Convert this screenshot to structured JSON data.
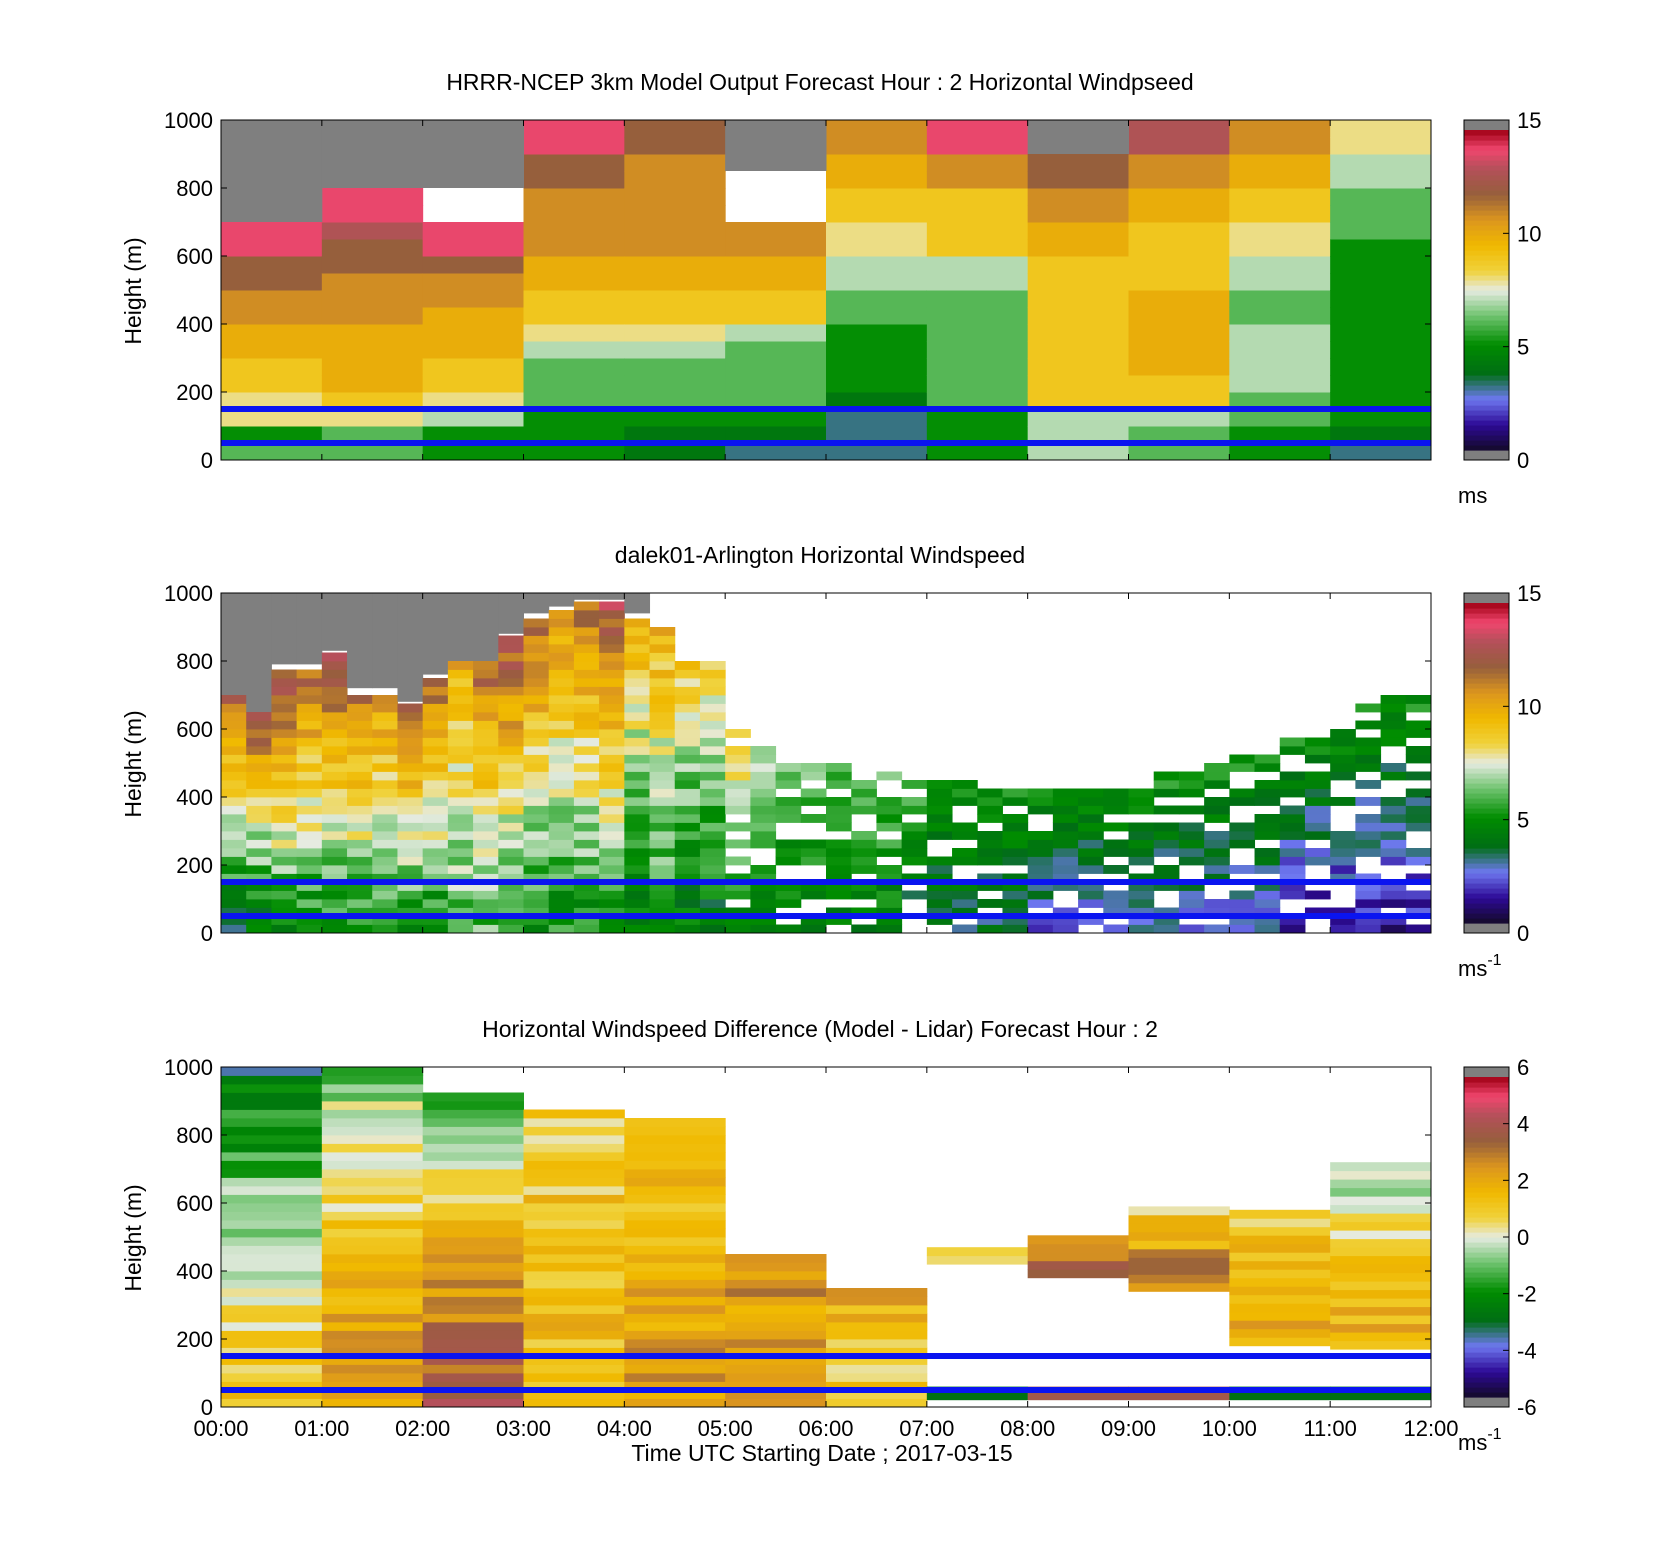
{
  "chart_data": [
    {
      "type": "heatmap",
      "title": "HRRR-NCEP 3km Model Output   Forecast Hour : 2 Horizontal Windpseed",
      "ylabel": "Height (m)",
      "xlabel": "",
      "ylim": [
        0,
        1000
      ],
      "xlim_hours": [
        0,
        12
      ],
      "yticks": [
        "0",
        "200",
        "400",
        "600",
        "800",
        "1000"
      ],
      "xticks": [],
      "colorbar": {
        "min": 0,
        "max": 15,
        "ticks": [
          "0",
          "5",
          "10",
          "15"
        ],
        "unit": "ms",
        "unit_sup": ""
      },
      "reference_lines_m": [
        50,
        150
      ],
      "cell_height_m": 50,
      "columns": [
        {
          "t0": 0,
          "t1": 1,
          "h0": 0,
          "h1": 700,
          "values": [
            6,
            5,
            8,
            8,
            9,
            9,
            10,
            10,
            11,
            11,
            12,
            12,
            14,
            14
          ]
        },
        {
          "t0": 1,
          "t1": 2,
          "h0": 0,
          "h1": 800,
          "values": [
            6,
            6,
            8,
            9,
            10,
            10,
            10,
            10,
            11,
            11,
            11,
            12,
            12,
            13,
            14,
            14
          ]
        },
        {
          "t0": 2,
          "t1": 3,
          "h0": 0,
          "h1": 700,
          "values": [
            5,
            5,
            7,
            8,
            9,
            9,
            10,
            10,
            10,
            11,
            11,
            12,
            14,
            14
          ]
        },
        {
          "t0": 3,
          "t1": 4,
          "h0": 0,
          "h1": 1000,
          "values": [
            5,
            5,
            5,
            6,
            6,
            6,
            7,
            8,
            9,
            9,
            10,
            10,
            11,
            11,
            11,
            11,
            12,
            12,
            14,
            14
          ]
        },
        {
          "t0": 4,
          "t1": 5,
          "h0": 0,
          "h1": 1000,
          "values": [
            4,
            4,
            5,
            6,
            6,
            6,
            7,
            8,
            9,
            9,
            10,
            10,
            11,
            11,
            11,
            11,
            11,
            11,
            12,
            12
          ]
        },
        {
          "t0": 5,
          "t1": 6,
          "h0": 0,
          "h1": 700,
          "values": [
            3,
            4,
            5,
            6,
            6,
            6,
            6,
            7,
            9,
            9,
            10,
            10,
            11,
            11
          ]
        },
        {
          "t0": 6,
          "t1": 7,
          "h0": 0,
          "h1": 1000,
          "values": [
            3,
            3,
            3,
            4,
            5,
            5,
            5,
            5,
            6,
            6,
            7,
            7,
            8,
            8,
            9,
            9,
            10,
            10,
            11,
            11
          ]
        },
        {
          "t0": 7,
          "t1": 8,
          "h0": 0,
          "h1": 1000,
          "values": [
            5,
            5,
            5,
            6,
            6,
            6,
            6,
            6,
            6,
            6,
            7,
            7,
            9,
            9,
            9,
            9,
            11,
            11,
            14,
            14
          ]
        },
        {
          "t0": 8,
          "t1": 9,
          "h0": 0,
          "h1": 900,
          "values": [
            7,
            7,
            7,
            9,
            9,
            9,
            9,
            9,
            9,
            9,
            9,
            9,
            10,
            10,
            11,
            11,
            12,
            12
          ]
        },
        {
          "t0": 9,
          "t1": 10,
          "h0": 0,
          "h1": 1000,
          "values": [
            6,
            6,
            7,
            9,
            9,
            10,
            10,
            10,
            10,
            10,
            9,
            9,
            9,
            9,
            10,
            10,
            11,
            11,
            13,
            13
          ]
        },
        {
          "t0": 10,
          "t1": 11,
          "h0": 0,
          "h1": 1000,
          "values": [
            5,
            5,
            6,
            6,
            7,
            7,
            7,
            7,
            6,
            6,
            7,
            7,
            8,
            8,
            9,
            9,
            10,
            10,
            11,
            11
          ]
        },
        {
          "t0": 11,
          "t1": 12,
          "h0": 0,
          "h1": 1000,
          "values": [
            3,
            4,
            5,
            5,
            5,
            5,
            5,
            5,
            5,
            5,
            5,
            5,
            5,
            6,
            6,
            6,
            7,
            7,
            8,
            8
          ]
        }
      ],
      "missing_blocks": [
        {
          "t0": 0,
          "t1": 1,
          "h0": 700,
          "h1": 1000
        },
        {
          "t0": 1,
          "t1": 3,
          "h0": 800,
          "h1": 1000
        },
        {
          "t0": 5,
          "t1": 6,
          "h0": 850,
          "h1": 1000
        },
        {
          "t0": 8,
          "t1": 9,
          "h0": 900,
          "h1": 1000
        }
      ],
      "missing_color": "#7f7f7f"
    },
    {
      "type": "heatmap",
      "title": "dalek01-Arlington  Horizontal Windspeed",
      "ylabel": "Height (m)",
      "xlabel": "",
      "ylim": [
        0,
        1000
      ],
      "xlim_hours": [
        0,
        12
      ],
      "yticks": [
        "0",
        "200",
        "400",
        "600",
        "800",
        "1000"
      ],
      "xticks": [],
      "colorbar": {
        "min": 0,
        "max": 15,
        "ticks": [
          "0",
          "5",
          "10",
          "15"
        ],
        "unit": "ms",
        "unit_sup": "-1"
      },
      "reference_lines_m": [
        50,
        150
      ],
      "profile_step_hours": 0.25,
      "cell_height_m": 25,
      "top_missing_until_hour": 4.25,
      "missing_color": "#7f7f7f",
      "profiles": [
        {
          "top": 700,
          "surf": 4,
          "peak": 12
        },
        {
          "top": 650,
          "surf": 4,
          "peak": 13
        },
        {
          "top": 790,
          "surf": 5,
          "peak": 13
        },
        {
          "top": 790,
          "surf": 5,
          "peak": 12
        },
        {
          "top": 830,
          "surf": 5,
          "peak": 13
        },
        {
          "top": 720,
          "surf": 5,
          "peak": 12
        },
        {
          "top": 720,
          "surf": 5,
          "peak": 11
        },
        {
          "top": 680,
          "surf": 5,
          "peak": 13
        },
        {
          "top": 760,
          "surf": 5,
          "peak": 12
        },
        {
          "top": 800,
          "surf": 6,
          "peak": 10
        },
        {
          "top": 800,
          "surf": 6,
          "peak": 12
        },
        {
          "top": 880,
          "surf": 5,
          "peak": 13
        },
        {
          "top": 940,
          "surf": 5,
          "peak": 12
        },
        {
          "top": 960,
          "surf": 5,
          "peak": 11
        },
        {
          "top": 980,
          "surf": 5,
          "peak": 12
        },
        {
          "top": 980,
          "surf": 5,
          "peak": 13
        },
        {
          "top": 940,
          "surf": 4,
          "peak": 10
        },
        {
          "top": 900,
          "surf": 5,
          "peak": 10
        },
        {
          "top": 800,
          "surf": 4,
          "peak": 9
        },
        {
          "top": 820,
          "surf": 4,
          "peak": 9
        },
        {
          "top": 620,
          "surf": 4,
          "peak": 9
        },
        {
          "top": 560,
          "surf": 4,
          "peak": 7
        },
        {
          "top": 540,
          "surf": 4,
          "peak": 6
        },
        {
          "top": 520,
          "surf": 4,
          "peak": 6
        },
        {
          "top": 520,
          "surf": 4,
          "peak": 6
        },
        {
          "top": 480,
          "surf": 4,
          "peak": 6
        },
        {
          "top": 490,
          "surf": 4,
          "peak": 6
        },
        {
          "top": 480,
          "surf": 3,
          "peak": 6
        },
        {
          "top": 470,
          "surf": 3,
          "peak": 5
        },
        {
          "top": 460,
          "surf": 3,
          "peak": 5
        },
        {
          "top": 460,
          "surf": 3,
          "peak": 5
        },
        {
          "top": 470,
          "surf": 3,
          "peak": 5
        },
        {
          "top": 440,
          "surf": 2,
          "peak": 5
        },
        {
          "top": 440,
          "surf": 2,
          "peak": 5
        },
        {
          "top": 450,
          "surf": 2,
          "peak": 5
        },
        {
          "top": 460,
          "surf": 2,
          "peak": 5
        },
        {
          "top": 470,
          "surf": 2,
          "peak": 5
        },
        {
          "top": 480,
          "surf": 2,
          "peak": 5
        },
        {
          "top": 500,
          "surf": 2,
          "peak": 5
        },
        {
          "top": 520,
          "surf": 2,
          "peak": 5
        },
        {
          "top": 540,
          "surf": 2,
          "peak": 5
        },
        {
          "top": 560,
          "surf": 2,
          "peak": 5
        },
        {
          "top": 580,
          "surf": 1,
          "peak": 5
        },
        {
          "top": 600,
          "surf": 1,
          "peak": 5
        },
        {
          "top": 640,
          "surf": 1,
          "peak": 5
        },
        {
          "top": 680,
          "surf": 1,
          "peak": 5
        },
        {
          "top": 700,
          "surf": 1,
          "peak": 5
        },
        {
          "top": 720,
          "surf": 1,
          "peak": 5
        }
      ]
    },
    {
      "type": "heatmap",
      "title": "Horizontal Windspeed Difference (Model - Lidar) Forecast Hour : 2",
      "ylabel": "Height (m)",
      "xlabel": "Time UTC  Starting Date ; 2017-03-15",
      "ylim": [
        0,
        1000
      ],
      "xlim_hours": [
        0,
        12
      ],
      "yticks": [
        "0",
        "200",
        "400",
        "600",
        "800",
        "1000"
      ],
      "xticks": [
        "00:00",
        "01:00",
        "02:00",
        "03:00",
        "04:00",
        "05:00",
        "06:00",
        "07:00",
        "08:00",
        "09:00",
        "10:00",
        "11:00",
        "12:00"
      ],
      "colorbar": {
        "min": -6,
        "max": 6,
        "ticks": [
          "-6",
          "-4",
          "-2",
          "0",
          "2",
          "4",
          "6"
        ],
        "unit": "ms",
        "unit_sup": "-1"
      },
      "reference_lines_m": [
        50,
        150
      ],
      "cell_height_m": 25,
      "columns": [
        {
          "t0": 0,
          "t1": 1,
          "h0": 0,
          "h1": 1000,
          "base": 1.2,
          "topval": -3
        },
        {
          "t0": 1,
          "t1": 2,
          "h0": 0,
          "h1": 990,
          "base": 2.5,
          "topval": -1
        },
        {
          "t0": 2,
          "t1": 3,
          "h0": 0,
          "h1": 930,
          "base": 4.0,
          "topval": -2
        },
        {
          "t0": 3,
          "t1": 4,
          "h0": 0,
          "h1": 870,
          "base": 1.5,
          "topval": 1
        },
        {
          "t0": 4,
          "t1": 5,
          "h0": 0,
          "h1": 840,
          "base": 2.5,
          "topval": 1
        },
        {
          "t0": 5,
          "t1": 6,
          "h0": 0,
          "h1": 450,
          "base": 2.0,
          "topval": 3
        },
        {
          "t0": 6,
          "t1": 7,
          "h0": 0,
          "h1": 340,
          "base": 1.0,
          "topval": 2
        },
        {
          "t0": 7,
          "t1": 8,
          "h0": 420,
          "h1": 460,
          "base": 1.0,
          "topval": 1
        },
        {
          "t0": 8,
          "t1": 9,
          "h0": 380,
          "h1": 500,
          "base": 4.0,
          "topval": 2
        },
        {
          "t0": 9,
          "t1": 10,
          "h0": 340,
          "h1": 600,
          "base": 3.0,
          "topval": 1
        },
        {
          "t0": 10,
          "t1": 11,
          "h0": 180,
          "h1": 590,
          "base": 2.0,
          "topval": 1
        },
        {
          "t0": 11,
          "t1": 12,
          "h0": 170,
          "h1": 720,
          "base": 2.0,
          "topval": -1
        }
      ]
    }
  ],
  "colors": {
    "reference_line": "#0a14f0",
    "background": "#ffffff"
  }
}
